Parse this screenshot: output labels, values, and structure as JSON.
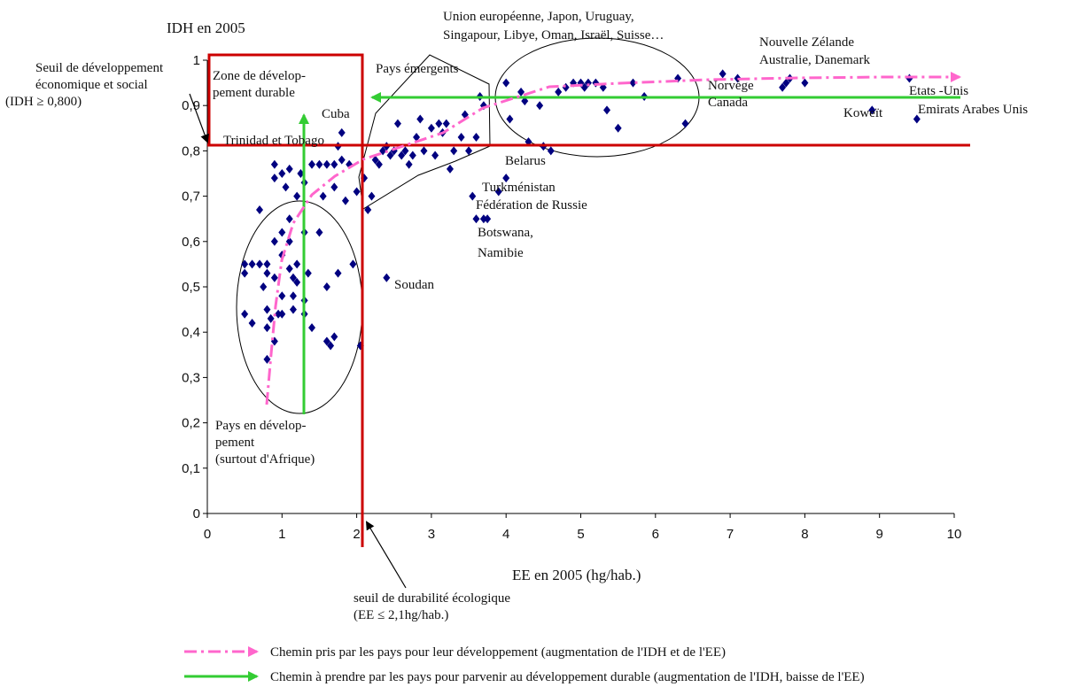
{
  "chart_data": {
    "type": "scatter",
    "title": "IDH en 2005",
    "ylabel": "IDH en 2005",
    "xlabel": "EE en 2005 (hg/hab.)",
    "xlim": [
      0,
      10
    ],
    "ylim": [
      0,
      1
    ],
    "x_ticks": [
      "0",
      "1",
      "2",
      "3",
      "4",
      "5",
      "6",
      "7",
      "8",
      "9",
      "10"
    ],
    "y_ticks": [
      "0",
      "0,1",
      "0,2",
      "0,3",
      "0,4",
      "0,5",
      "0,6",
      "0,7",
      "0,8",
      "0,9",
      "1"
    ],
    "grid": false,
    "colors": {
      "points": "#000080",
      "pink": "#ff66cc",
      "green": "#33cc33",
      "red": "#cc0000"
    },
    "points": [
      [
        0.5,
        0.55
      ],
      [
        0.5,
        0.53
      ],
      [
        0.5,
        0.44
      ],
      [
        0.6,
        0.55
      ],
      [
        0.6,
        0.42
      ],
      [
        0.7,
        0.55
      ],
      [
        0.7,
        0.67
      ],
      [
        0.75,
        0.5
      ],
      [
        0.8,
        0.55
      ],
      [
        0.8,
        0.53
      ],
      [
        0.8,
        0.45
      ],
      [
        0.8,
        0.41
      ],
      [
        0.8,
        0.34
      ],
      [
        0.85,
        0.43
      ],
      [
        0.9,
        0.52
      ],
      [
        0.9,
        0.6
      ],
      [
        0.9,
        0.38
      ],
      [
        0.9,
        0.77
      ],
      [
        0.9,
        0.74
      ],
      [
        0.95,
        0.44
      ],
      [
        1.0,
        0.62
      ],
      [
        1.0,
        0.57
      ],
      [
        1.0,
        0.48
      ],
      [
        1.0,
        0.44
      ],
      [
        1.0,
        0.75
      ],
      [
        1.05,
        0.72
      ],
      [
        1.1,
        0.54
      ],
      [
        1.1,
        0.6
      ],
      [
        1.1,
        0.76
      ],
      [
        1.1,
        0.65
      ],
      [
        1.15,
        0.52
      ],
      [
        1.15,
        0.48
      ],
      [
        1.15,
        0.45
      ],
      [
        1.2,
        0.7
      ],
      [
        1.2,
        0.51
      ],
      [
        1.2,
        0.55
      ],
      [
        1.25,
        0.75
      ],
      [
        1.3,
        0.73
      ],
      [
        1.3,
        0.62
      ],
      [
        1.3,
        0.47
      ],
      [
        1.3,
        0.44
      ],
      [
        1.35,
        0.53
      ],
      [
        1.4,
        0.77
      ],
      [
        1.4,
        0.41
      ],
      [
        1.5,
        0.77
      ],
      [
        1.5,
        0.62
      ],
      [
        1.55,
        0.7
      ],
      [
        1.6,
        0.77
      ],
      [
        1.6,
        0.5
      ],
      [
        1.6,
        0.38
      ],
      [
        1.65,
        0.37
      ],
      [
        1.7,
        0.77
      ],
      [
        1.7,
        0.72
      ],
      [
        1.7,
        0.39
      ],
      [
        1.75,
        0.53
      ],
      [
        1.8,
        0.78
      ],
      [
        1.85,
        0.69
      ],
      [
        1.9,
        0.77
      ],
      [
        1.95,
        0.55
      ],
      [
        2.0,
        0.71
      ],
      [
        2.05,
        0.37
      ],
      [
        2.1,
        0.74
      ],
      [
        2.15,
        0.67
      ],
      [
        2.2,
        0.7
      ],
      [
        2.25,
        0.78
      ],
      [
        2.3,
        0.77
      ],
      [
        2.35,
        0.8
      ],
      [
        2.4,
        0.81
      ],
      [
        2.45,
        0.79
      ],
      [
        2.5,
        0.8
      ],
      [
        2.55,
        0.86
      ],
      [
        2.6,
        0.79
      ],
      [
        2.65,
        0.8
      ],
      [
        2.7,
        0.77
      ],
      [
        2.75,
        0.79
      ],
      [
        2.8,
        0.83
      ],
      [
        2.85,
        0.87
      ],
      [
        2.9,
        0.8
      ],
      [
        3.0,
        0.85
      ],
      [
        3.05,
        0.79
      ],
      [
        3.1,
        0.86
      ],
      [
        3.15,
        0.84
      ],
      [
        3.2,
        0.86
      ],
      [
        3.25,
        0.76
      ],
      [
        3.3,
        0.8
      ],
      [
        3.4,
        0.83
      ],
      [
        3.45,
        0.88
      ],
      [
        3.5,
        0.8
      ],
      [
        3.55,
        0.7
      ],
      [
        3.6,
        0.83
      ],
      [
        3.65,
        0.92
      ],
      [
        3.7,
        0.9
      ],
      [
        3.75,
        0.65
      ],
      [
        3.9,
        0.71
      ],
      [
        4.0,
        0.95
      ],
      [
        4.05,
        0.87
      ],
      [
        4.2,
        0.93
      ],
      [
        4.25,
        0.91
      ],
      [
        4.3,
        0.82
      ],
      [
        4.45,
        0.9
      ],
      [
        4.5,
        0.81
      ],
      [
        4.6,
        0.8
      ],
      [
        4.7,
        0.93
      ],
      [
        4.8,
        0.94
      ],
      [
        4.9,
        0.95
      ],
      [
        5.0,
        0.95
      ],
      [
        5.05,
        0.94
      ],
      [
        5.1,
        0.95
      ],
      [
        5.2,
        0.95
      ],
      [
        5.3,
        0.94
      ],
      [
        5.35,
        0.89
      ],
      [
        5.5,
        0.85
      ],
      [
        5.7,
        0.95
      ],
      [
        5.85,
        0.92
      ],
      [
        6.3,
        0.96
      ],
      [
        6.4,
        0.86
      ],
      [
        6.9,
        0.97
      ],
      [
        7.1,
        0.96
      ],
      [
        7.7,
        0.94
      ],
      [
        7.75,
        0.95
      ],
      [
        7.8,
        0.96
      ],
      [
        8.0,
        0.95
      ],
      [
        8.9,
        0.89
      ],
      [
        9.4,
        0.96
      ],
      [
        9.5,
        0.87
      ],
      [
        1.8,
        0.84
      ],
      [
        1.75,
        0.81
      ],
      [
        2.4,
        0.52
      ],
      [
        3.6,
        0.65
      ],
      [
        3.7,
        0.65
      ],
      [
        4.0,
        0.74
      ]
    ],
    "annotations": {
      "zone_dev_durable": [
        "Zone de dévelop-",
        "pement durable"
      ],
      "seuil_dev": [
        "Seuil de développement",
        "économique et social",
        "(IDH ≥ 0,800)"
      ],
      "seuil_eco": [
        "seuil de durabilité écologique",
        "(EE ≤ 2,1hg/hab.)"
      ],
      "pays_emergents": "Pays émergents",
      "pays_en_dev": [
        "Pays en dévelop-",
        "pement",
        "(surtout d'Afrique)"
      ],
      "ue_group": [
        "Union européenne, Japon, Uruguay,",
        "Singapour, Libye, Oman, Israël, Suisse…"
      ],
      "nz_group": [
        "Nouvelle Zélande",
        "Australie, Danemark"
      ],
      "norvege": [
        "Norvège",
        "Canada"
      ],
      "etats_unis": "Etats -Unis",
      "koweit": "Koweït",
      "emirats": "Emirats Arabes Unis",
      "cuba": "Cuba",
      "trinidad": "Trinidad et Tobago",
      "belarus": "Belarus",
      "turkmenistan": "Turkménistan",
      "russie": "Fédération de Russie",
      "botswana": [
        "Botswana,",
        "Namibie"
      ],
      "soudan": "Soudan"
    },
    "legend": {
      "pink": "Chemin pris par les pays pour leur développement (augmentation de l'IDH et de l'EE)",
      "green": "Chemin à prendre par les pays pour parvenir au développement durable (augmentation de l'IDH, baisse de l'EE)"
    }
  }
}
